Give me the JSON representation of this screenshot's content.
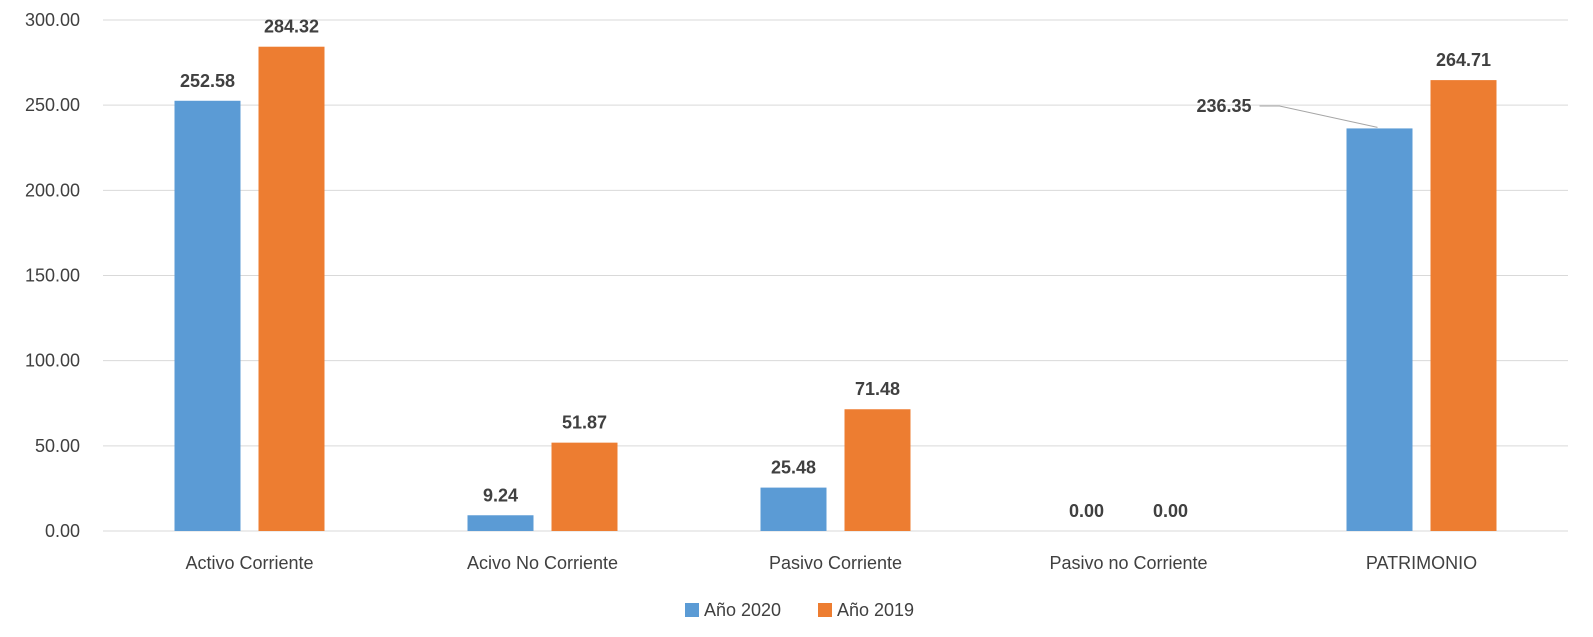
{
  "chart_data": {
    "type": "bar",
    "title": "",
    "xlabel": "",
    "ylabel": "",
    "categories": [
      "Activo Corriente",
      "Acivo No Corriente",
      "Pasivo Corriente",
      "Pasivo no Corriente",
      "PATRIMONIO"
    ],
    "series": [
      {
        "name": "Año 2020",
        "color": "#5b9bd5",
        "values": [
          252.58,
          9.24,
          25.48,
          0.0,
          236.35
        ],
        "labels": [
          "252.58",
          "9.24",
          "25.48",
          "0.00",
          "236.35"
        ]
      },
      {
        "name": "Año 2019",
        "color": "#ed7d31",
        "values": [
          284.32,
          51.87,
          71.48,
          0.0,
          264.71
        ],
        "labels": [
          "284.32",
          "51.87",
          "71.48",
          "0.00",
          "264.71"
        ]
      }
    ],
    "ylim": [
      0,
      300
    ],
    "yticks": [
      "0.00",
      "50.00",
      "100.00",
      "150.00",
      "200.00",
      "250.00",
      "300.00"
    ],
    "grid": true,
    "legend_position": "bottom"
  }
}
